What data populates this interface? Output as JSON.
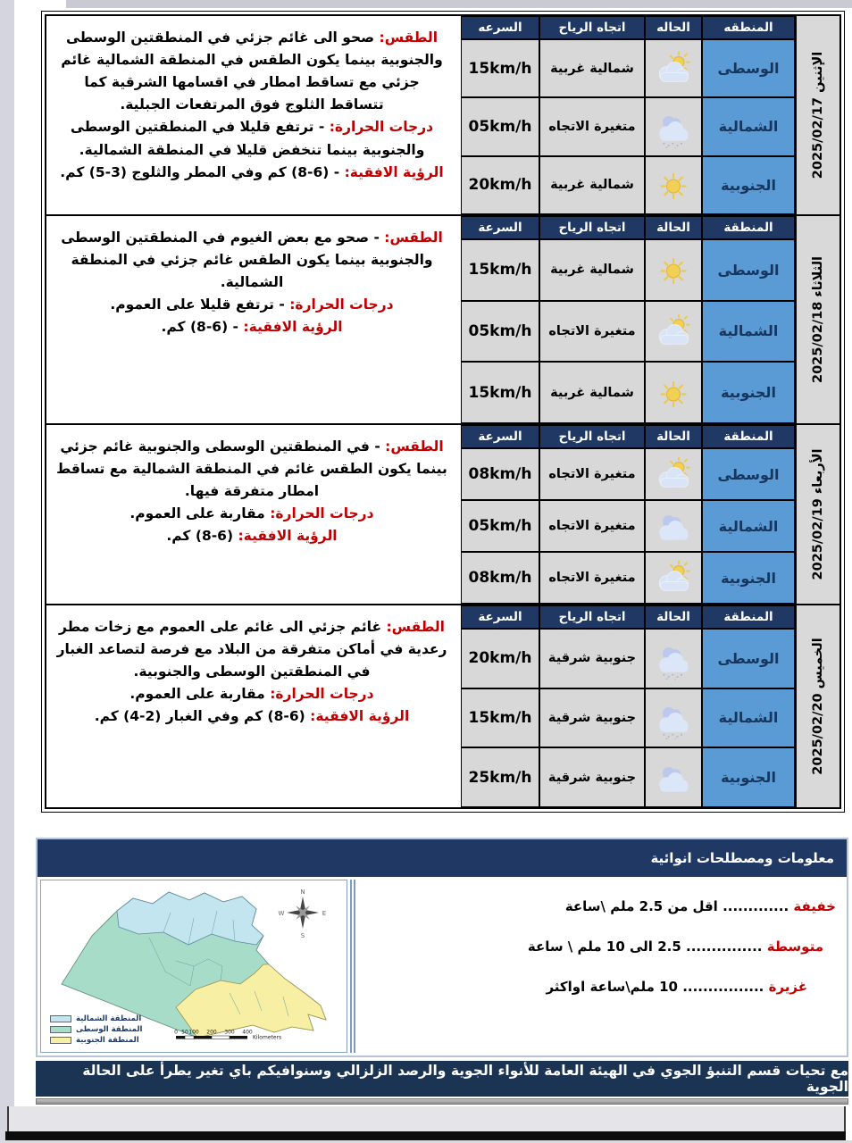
{
  "days": [
    {
      "date_label": "الإثنين 2025/02/17",
      "headers": {
        "region": "المنطقه",
        "condition": "الحاله",
        "wind": "اتجاه الرياح",
        "speed": "السرعه"
      },
      "rows": [
        {
          "region": "الوسطى",
          "icon": "partly-cloudy",
          "wind": "شمالية غربية",
          "speed": "15km/h"
        },
        {
          "region": "الشمالية",
          "icon": "light-rain",
          "wind": "متغيرة الاتجاه",
          "speed": "05km/h"
        },
        {
          "region": "الجنوبية",
          "icon": "sunny",
          "wind": "شمالية غربية",
          "speed": "20km/h"
        }
      ],
      "description": [
        {
          "label": "الطقس:",
          "text": "صحو الى غائم جزئي في المنطقتين الوسطى والجنوبية بينما يكون الطقس في المنطقة الشمالية غائم جزئي مع تساقط امطار في اقسامها الشرقية كما تتساقط الثلوج فوق المرتفعات الجبلية."
        },
        {
          "label": "درجات الحرارة:",
          "text": "- ترتفع قليلا في المنطقتين الوسطى والجنوبية بينما تنخفض قليلا في المنطقة الشمالية."
        },
        {
          "label": "الرؤية الافقية:",
          "text": "- (6-8) كم وفي المطر والثلوج (3-5) كم."
        }
      ]
    },
    {
      "date_label": "الثلاثاء 2025/02/18",
      "headers": {
        "region": "المنطقة",
        "condition": "الحالة",
        "wind": "اتجاه الرياح",
        "speed": "السرعة"
      },
      "rows": [
        {
          "region": "الوسطى",
          "icon": "sunny",
          "wind": "شمالية غربية",
          "speed": "15km/h"
        },
        {
          "region": "الشمالية",
          "icon": "partly-cloudy",
          "wind": "متغيرة الاتجاه",
          "speed": "05km/h"
        },
        {
          "region": "الجنوبية",
          "icon": "sunny",
          "wind": "شمالية غربية",
          "speed": "15km/h"
        }
      ],
      "description": [
        {
          "label": "الطقس:",
          "text": "- صحو مع بعض الغيوم في المنطقتين الوسطى والجنوبية بينما يكون الطقس غائم جزئي في المنطقة الشمالية."
        },
        {
          "label": "درجات الحرارة:",
          "text": "- ترتفع قليلا على العموم."
        },
        {
          "label": "الرؤية الافقية:",
          "text": "- (6-8) كم."
        }
      ]
    },
    {
      "date_label": "الأربعاء 2025/02/19",
      "headers": {
        "region": "المنطقة",
        "condition": "الحالة",
        "wind": "اتجاه الرياح",
        "speed": "السرعة"
      },
      "rows": [
        {
          "region": "الوسطى",
          "icon": "partly-cloudy",
          "wind": "متغيرة الاتجاه",
          "speed": "08km/h"
        },
        {
          "region": "الشمالية",
          "icon": "cloudy",
          "wind": "متغيرة الاتجاه",
          "speed": "05km/h"
        },
        {
          "region": "الجنوبية",
          "icon": "partly-cloudy",
          "wind": "متغيرة الاتجاه",
          "speed": "08km/h"
        }
      ],
      "description": [
        {
          "label": "الطقس:",
          "text": "- في المنطقتين الوسطى والجنوبية غائم جزئي بينما يكون الطقس غائم في المنطقة الشمالية مع تساقط امطار متفرقة فيها."
        },
        {
          "label": "درجات الحرارة:",
          "text": "مقاربة على العموم."
        },
        {
          "label": "الرؤية الافقية:",
          "text": "(6-8) كم."
        }
      ]
    },
    {
      "date_label": "الخميس 2025/02/20",
      "headers": {
        "region": "المنطقة",
        "condition": "الحالة",
        "wind": "اتجاه الرياح",
        "speed": "السرعة"
      },
      "rows": [
        {
          "region": "الوسطى",
          "icon": "light-rain",
          "wind": "جنوبية شرقية",
          "speed": "20km/h"
        },
        {
          "region": "الشمالية",
          "icon": "light-rain",
          "wind": "جنوبية شرقية",
          "speed": "15km/h"
        },
        {
          "region": "الجنوبية",
          "icon": "cloudy",
          "wind": "جنوبية شرقية",
          "speed": "25km/h"
        }
      ],
      "description": [
        {
          "label": "الطقس:",
          "text": "غائم جزئي الى غائم على العموم مع زخات مطر رعدية في أماكن متفرقة من البلاد مع فرصة لتصاعد الغبار في المنطقتين الوسطى والجنوبية."
        },
        {
          "label": "درجات الحرارة:",
          "text": "مقاربة على العموم."
        },
        {
          "label": "الرؤية الافقية:",
          "text": "(6-8) كم وفي الغبار (2-4) كم."
        }
      ]
    }
  ],
  "info_section": {
    "title": "معلومات ومصطلحات انوائية",
    "terms": [
      {
        "term": "خفيفة",
        "dots": ".............",
        "definition": "اقل من 2.5 ملم \\ساعة"
      },
      {
        "term": "متوسطة",
        "dots": "...............",
        "definition": "2.5 الى 10 ملم \\ ساعة"
      },
      {
        "term": "غزيرة",
        "dots": "................",
        "definition": "10 ملم\\ساعة اواكثر"
      }
    ],
    "map": {
      "legend": [
        {
          "label": "المنطقة الشمالية",
          "color": "#c2e5ef"
        },
        {
          "label": "المنطقة الوسطى",
          "color": "#a7dcc9"
        },
        {
          "label": "المنطقة الجنوبية",
          "color": "#f6efa4"
        }
      ],
      "compass": [
        "N",
        "W",
        "E",
        "S"
      ],
      "scale_ticks": [
        "0",
        "50",
        "100",
        "200",
        "300",
        "400"
      ],
      "scale_unit": "Kilometers"
    }
  },
  "footer": {
    "text": "مع تحيات قسم التنبؤ الجوي في الهيئة العامة للأنواء الجوية والرصد الزلزالي وسنوافيكم باي تغير يطرأ على الحالة الجوية"
  },
  "colors": {
    "header_navy": "#1f3864",
    "region_blue": "#5b9bd5",
    "cell_gray": "#d8d8d8",
    "label_red": "#c00000"
  }
}
